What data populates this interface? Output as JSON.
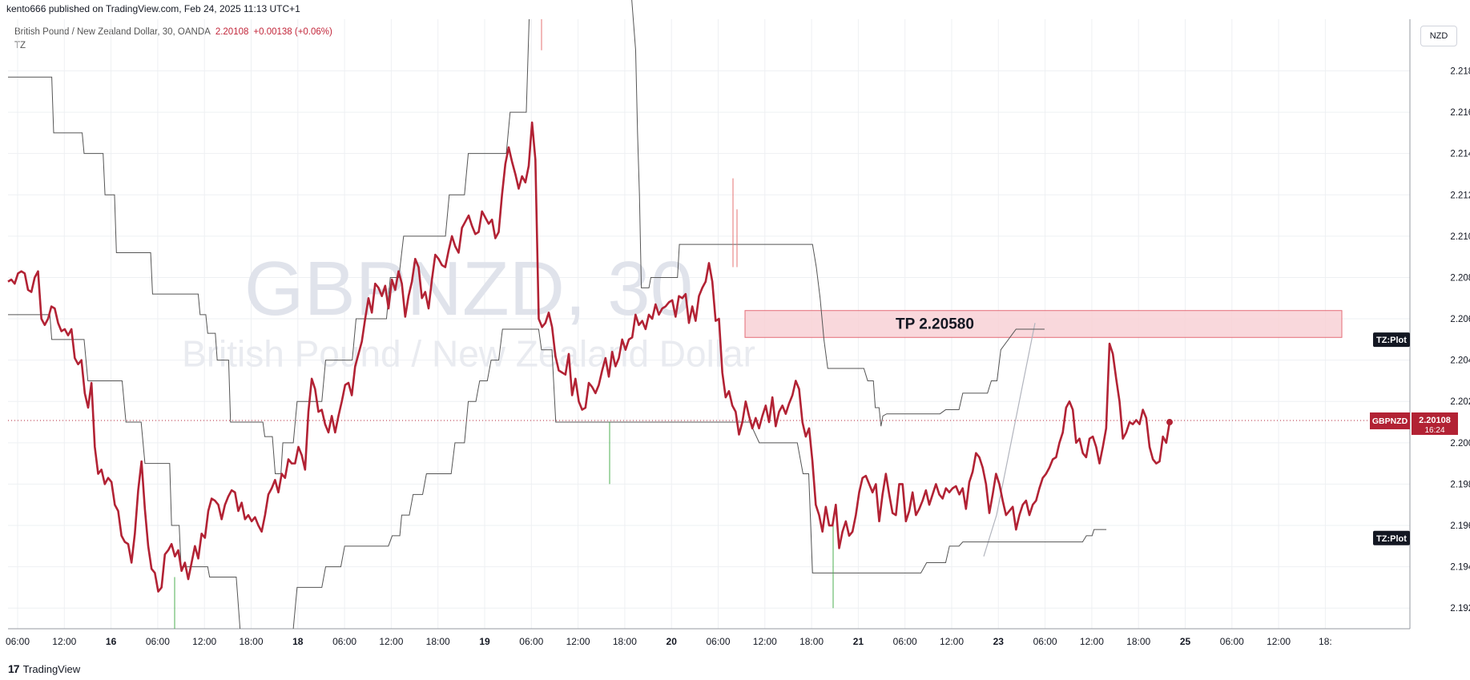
{
  "header": {
    "published_by": "kento666 published on TradingView.com, Feb 24, 2025 11:13 UTC+1"
  },
  "legend": {
    "symbol_desc": "British Pound / New Zealand Dollar, 30, OANDA",
    "price": "2.20108",
    "change": "+0.00138 (+0.06%)",
    "indicator": "TZ"
  },
  "currency": "NZD",
  "watermark": {
    "line1": "GBPNZD, 30",
    "line2": "British Pound / New Zealand Dollar"
  },
  "footer": {
    "brand": "TradingView",
    "logo_icon": "tradingview-logo-icon"
  },
  "colors": {
    "price_line": "#b22234",
    "indicator_line": "#555555",
    "zone_fill": "#f9d2d6",
    "zone_stroke": "#e0525f",
    "grid": "#eef0f3"
  },
  "chart_data": {
    "type": "line",
    "title": "",
    "ylim": [
      2.191,
      2.2205
    ],
    "y_ticks": [
      "2.21800",
      "2.21600",
      "2.21400",
      "2.21200",
      "2.21000",
      "2.20800",
      "2.20600",
      "2.20400",
      "2.20200",
      "2.20000",
      "2.19800",
      "2.19600",
      "2.19400",
      "2.19200"
    ],
    "x_ticks": [
      "06:00",
      "12:00",
      "16",
      "06:00",
      "12:00",
      "18:00",
      "18",
      "06:00",
      "12:00",
      "18:00",
      "19",
      "06:00",
      "12:00",
      "18:00",
      "20",
      "06:00",
      "12:00",
      "18:00",
      "21",
      "06:00",
      "12:00",
      "23",
      "06:00",
      "12:00",
      "18:00",
      "25",
      "06:00",
      "12:00",
      "18:"
    ],
    "x_ticks_bold": [
      "16",
      "18",
      "19",
      "20",
      "21",
      "23",
      "25"
    ],
    "grid": true,
    "series": [
      {
        "name": "GBPNZD",
        "values": [
          2.2078,
          2.2079,
          2.2077,
          2.2082,
          2.2083,
          2.2082,
          2.2074,
          2.2073,
          2.208,
          2.2083,
          2.206,
          2.2057,
          2.206,
          2.2066,
          2.2065,
          2.2058,
          2.2054,
          2.2055,
          2.2052,
          2.2055,
          2.2041,
          2.2038,
          2.204,
          2.2024,
          2.2017,
          2.2029,
          2.1998,
          2.1985,
          2.1987,
          2.198,
          2.1983,
          2.1981,
          2.197,
          2.1967,
          2.1955,
          2.1952,
          2.1951,
          2.1942,
          2.1956,
          2.1977,
          2.1991,
          2.1968,
          2.195,
          2.1939,
          2.1937,
          2.1928,
          2.193,
          2.1946,
          2.1948,
          2.1951,
          2.1945,
          2.1948,
          2.1938,
          2.1942,
          2.1934,
          2.1942,
          2.195,
          2.1944,
          2.1956,
          2.1954,
          2.1967,
          2.1973,
          2.1972,
          2.197,
          2.1963,
          2.197,
          2.1974,
          2.1977,
          2.1976,
          2.1967,
          2.1971,
          2.1963,
          2.1965,
          2.1962,
          2.1964,
          2.196,
          2.1957,
          2.1965,
          2.1975,
          2.1978,
          2.1982,
          2.1976,
          2.1985,
          2.1983,
          2.1992,
          2.199,
          2.199,
          2.1998,
          2.1994,
          2.1987,
          2.2015,
          2.2031,
          2.2026,
          2.2015,
          2.2016,
          2.2009,
          2.2005,
          2.2013,
          2.2005,
          2.2013,
          2.202,
          2.2028,
          2.2029,
          2.2023,
          2.2037,
          2.2043,
          2.2049,
          2.206,
          2.207,
          2.2063,
          2.2077,
          2.2075,
          2.2071,
          2.2076,
          2.2065,
          2.2079,
          2.2074,
          2.2083,
          2.2077,
          2.2061,
          2.2071,
          2.2078,
          2.2089,
          2.2085,
          2.207,
          2.2073,
          2.2065,
          2.2079,
          2.2091,
          2.2089,
          2.2086,
          2.2085,
          2.2093,
          2.21,
          2.2095,
          2.2092,
          2.2104,
          2.2107,
          2.211,
          2.2105,
          2.2101,
          2.2102,
          2.2112,
          2.2109,
          2.2106,
          2.2108,
          2.2099,
          2.2102,
          2.212,
          2.2135,
          2.2143,
          2.2136,
          2.213,
          2.2123,
          2.2129,
          2.2126,
          2.2134,
          2.2155,
          2.2137,
          2.206,
          2.2056,
          2.2058,
          2.2063,
          2.2056,
          2.2042,
          2.2035,
          2.2034,
          2.2033,
          2.2043,
          2.2023,
          2.2031,
          2.202,
          2.2016,
          2.2017,
          2.2029,
          2.2027,
          2.2024,
          2.2028,
          2.2035,
          2.2041,
          2.2032,
          2.2044,
          2.2037,
          2.2041,
          2.205,
          2.2045,
          2.205,
          2.2051,
          2.2062,
          2.2057,
          2.2059,
          2.2055,
          2.2062,
          2.206,
          2.2067,
          2.2062,
          2.2065,
          2.2066,
          2.2068,
          2.2069,
          2.2061,
          2.2071,
          2.207,
          2.2072,
          2.2058,
          2.2066,
          2.2059,
          2.2071,
          2.2075,
          2.2078,
          2.2087,
          2.2078,
          2.2059,
          2.206,
          2.2034,
          2.2022,
          2.2025,
          2.2018,
          2.2015,
          2.2004,
          2.201,
          2.202,
          2.2013,
          2.2007,
          2.2012,
          2.2007,
          2.2013,
          2.2018,
          2.201,
          2.2022,
          2.2008,
          2.2015,
          2.2018,
          2.2014,
          2.2019,
          2.2023,
          2.203,
          2.2026,
          2.201,
          2.2003,
          2.2007,
          2.1991,
          2.197,
          2.1965,
          2.1957,
          2.1969,
          2.196,
          2.196,
          2.197,
          2.1949,
          2.1957,
          2.1962,
          2.1955,
          2.1957,
          2.1965,
          2.1976,
          2.1983,
          2.1984,
          2.198,
          2.1976,
          2.198,
          2.1962,
          2.1975,
          2.1985,
          2.1975,
          2.1966,
          2.1965,
          2.198,
          2.198,
          2.1962,
          2.1967,
          2.1976,
          2.1965,
          2.1968,
          2.1972,
          2.1977,
          2.197,
          2.1975,
          2.198,
          2.1975,
          2.1973,
          2.1978,
          2.1976,
          2.1978,
          2.1979,
          2.1975,
          2.1978,
          2.1968,
          2.1981,
          2.1986,
          2.1995,
          2.1993,
          2.1988,
          2.198,
          2.1966,
          2.1975,
          2.1985,
          2.198,
          2.1972,
          2.1965,
          2.1967,
          2.1969,
          2.1958,
          2.1965,
          2.197,
          2.1972,
          2.1965,
          2.197,
          2.1972,
          2.1978,
          2.1983,
          2.1985,
          2.1988,
          2.1992,
          2.1993,
          2.2,
          2.2005,
          2.2017,
          2.202,
          2.2016,
          2.2,
          2.2002,
          2.1995,
          2.1993,
          2.2002,
          2.2003,
          2.1998,
          2.199,
          2.1998,
          2.2007,
          2.2048,
          2.2043,
          2.2031,
          2.202,
          2.2002,
          2.2005,
          2.201,
          2.2009,
          2.2011,
          2.2009,
          2.2016,
          2.2012,
          2.1998,
          2.1992,
          2.199,
          2.1991,
          2.2003,
          2.2,
          2.201
        ]
      },
      {
        "name": "TZ upper",
        "points": [
          [
            0,
            2.2177
          ],
          [
            46,
            2.2177
          ],
          [
            48,
            2.215
          ],
          [
            78,
            2.215
          ],
          [
            80,
            2.214
          ],
          [
            100,
            2.214
          ],
          [
            102,
            2.212
          ],
          [
            112,
            2.212
          ],
          [
            114,
            2.2092
          ],
          [
            150,
            2.2092
          ],
          [
            152,
            2.2072
          ],
          [
            200,
            2.2072
          ],
          [
            202,
            2.2062
          ],
          [
            208,
            2.2062
          ],
          [
            210,
            2.2053
          ],
          [
            218,
            2.2053
          ],
          [
            220,
            2.204
          ],
          [
            232,
            2.204
          ],
          [
            234,
            2.201
          ],
          [
            268,
            2.201
          ],
          [
            270,
            2.2003
          ],
          [
            278,
            2.2003
          ],
          [
            281,
            2.1985
          ],
          [
            287,
            2.1985
          ],
          [
            289,
            2.2
          ],
          [
            300,
            2.2
          ],
          [
            304,
            2.202
          ],
          [
            330,
            2.202
          ],
          [
            334,
            2.204
          ],
          [
            362,
            2.204
          ],
          [
            366,
            2.206
          ],
          [
            398,
            2.206
          ],
          [
            402,
            2.208
          ],
          [
            411,
            2.208
          ],
          [
            416,
            2.21
          ],
          [
            460,
            2.21
          ],
          [
            464,
            2.212
          ],
          [
            480,
            2.212
          ],
          [
            484,
            2.214
          ],
          [
            524,
            2.214
          ],
          [
            528,
            2.216
          ],
          [
            545,
            2.216
          ],
          [
            548,
            2.2205
          ]
        ]
      },
      {
        "name": "TZ lower",
        "points": [
          [
            0,
            2.2062
          ],
          [
            44,
            2.2062
          ],
          [
            46,
            2.205
          ],
          [
            80,
            2.205
          ],
          [
            84,
            2.203
          ],
          [
            120,
            2.203
          ],
          [
            124,
            2.201
          ],
          [
            140,
            2.201
          ],
          [
            144,
            2.199
          ],
          [
            170,
            2.199
          ],
          [
            172,
            2.196
          ],
          [
            180,
            2.196
          ],
          [
            182,
            2.194
          ],
          [
            210,
            2.194
          ],
          [
            212,
            2.1935
          ],
          [
            240,
            2.1935
          ],
          [
            244,
            2.191
          ]
        ]
      },
      {
        "name": "TZ lower 2",
        "points": [
          [
            300,
            2.191
          ],
          [
            304,
            2.193
          ],
          [
            330,
            2.193
          ],
          [
            334,
            2.194
          ],
          [
            350,
            2.194
          ],
          [
            354,
            2.195
          ],
          [
            400,
            2.195
          ],
          [
            404,
            2.1955
          ],
          [
            412,
            2.1955
          ],
          [
            414,
            2.1965
          ],
          [
            422,
            2.1965
          ],
          [
            426,
            2.1975
          ],
          [
            436,
            2.1975
          ],
          [
            440,
            2.1985
          ],
          [
            466,
            2.1985
          ],
          [
            470,
            2.2
          ],
          [
            480,
            2.2
          ],
          [
            484,
            2.202
          ],
          [
            492,
            2.202
          ],
          [
            496,
            2.203
          ],
          [
            504,
            2.203
          ],
          [
            508,
            2.204
          ],
          [
            516,
            2.204
          ],
          [
            520,
            2.2055
          ],
          [
            558,
            2.2055
          ],
          [
            561,
            2.2045
          ],
          [
            572,
            2.2045
          ],
          [
            576,
            2.201
          ],
          [
            780,
            2.201
          ],
          [
            790,
            2.2
          ],
          [
            830,
            2.2
          ],
          [
            836,
            2.1985
          ],
          [
            842,
            2.1985
          ],
          [
            846,
            2.1937
          ],
          [
            960,
            2.1937
          ],
          [
            966,
            2.1942
          ],
          [
            986,
            2.1942
          ],
          [
            990,
            2.195
          ],
          [
            1000,
            2.195
          ],
          [
            1004,
            2.1952
          ],
          [
            1130,
            2.1952
          ],
          [
            1134,
            2.1955
          ],
          [
            1140,
            2.1955
          ],
          [
            1142,
            2.1958
          ],
          [
            1155,
            2.1958
          ]
        ]
      },
      {
        "name": "TZ upper 2",
        "points": [
          [
            655,
            2.222
          ],
          [
            660,
            2.219
          ],
          [
            662,
            2.215
          ],
          [
            664,
            2.212
          ],
          [
            666,
            2.2075
          ],
          [
            674,
            2.2075
          ],
          [
            676,
            2.208
          ],
          [
            704,
            2.208
          ],
          [
            706,
            2.2096
          ],
          [
            846,
            2.2096
          ],
          [
            850,
            2.2085
          ],
          [
            854,
            2.207
          ],
          [
            858,
            2.205
          ],
          [
            862,
            2.2036
          ],
          [
            900,
            2.2036
          ],
          [
            904,
            2.203
          ],
          [
            910,
            2.203
          ],
          [
            912,
            2.2017
          ],
          [
            916,
            2.2017
          ],
          [
            918,
            2.2008
          ],
          [
            920,
            2.2013
          ],
          [
            924,
            2.2014
          ],
          [
            980,
            2.2014
          ],
          [
            986,
            2.2016
          ],
          [
            1000,
            2.2016
          ],
          [
            1004,
            2.2024
          ],
          [
            1030,
            2.2024
          ],
          [
            1034,
            2.203
          ],
          [
            1040,
            2.203
          ],
          [
            1044,
            2.2045
          ],
          [
            1060,
            2.2055
          ],
          [
            1090,
            2.2055
          ]
        ]
      }
    ],
    "zone": {
      "label": "TP 2.20580",
      "y_top": 2.2064,
      "y_bottom": 2.2051
    },
    "current_price": {
      "label": "GBPNZD",
      "value": "2.20108",
      "countdown": "16:24"
    },
    "tags": [
      {
        "label": "TZ:Plot",
        "value": 2.2053
      },
      {
        "label": "TZ:Plot",
        "value": 2.1957
      }
    ]
  }
}
